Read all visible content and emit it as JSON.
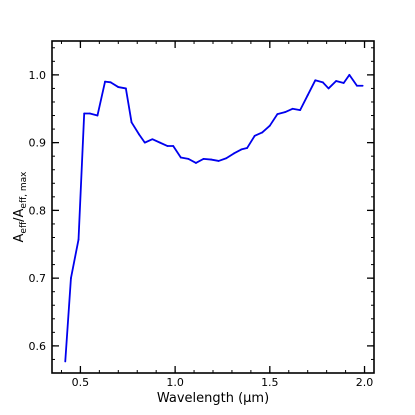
{
  "chart_data": {
    "type": "line",
    "title": "",
    "xlabel": "Wavelength (μm)",
    "ylabel": {
      "main": "A",
      "sub1": "eff",
      "sep": "/A",
      "sub2": "eff, max"
    },
    "xlim": [
      0.35,
      2.05
    ],
    "ylim": [
      0.56,
      1.05
    ],
    "xticks": [
      {
        "value": 0.5,
        "label": "0.5"
      },
      {
        "value": 1.0,
        "label": "1.0"
      },
      {
        "value": 1.5,
        "label": "1.5"
      },
      {
        "value": 2.0,
        "label": "2.0"
      }
    ],
    "yticks": [
      {
        "value": 0.6,
        "label": "0.6"
      },
      {
        "value": 0.7,
        "label": "0.7"
      },
      {
        "value": 0.8,
        "label": "0.8"
      },
      {
        "value": 0.9,
        "label": "0.9"
      },
      {
        "value": 1.0,
        "label": "1.0"
      }
    ],
    "minor_x_step": 0.1,
    "minor_y_step": 0.02,
    "grid": false,
    "line_color": "#0000ee",
    "series": [
      {
        "x": [
          0.42,
          0.45,
          0.49,
          0.52,
          0.55,
          0.59,
          0.63,
          0.66,
          0.7,
          0.74,
          0.77,
          0.81,
          0.84,
          0.88,
          0.92,
          0.96,
          0.99,
          1.03,
          1.07,
          1.11,
          1.15,
          1.19,
          1.23,
          1.27,
          1.31,
          1.35,
          1.38,
          1.42,
          1.46,
          1.5,
          1.54,
          1.58,
          1.62,
          1.66,
          1.7,
          1.74,
          1.78,
          1.81,
          1.85,
          1.89,
          1.92,
          1.96,
          1.99
        ],
        "y": [
          0.577,
          0.7,
          0.757,
          0.943,
          0.943,
          0.94,
          0.99,
          0.989,
          0.982,
          0.98,
          0.93,
          0.912,
          0.9,
          0.905,
          0.9,
          0.895,
          0.895,
          0.878,
          0.876,
          0.87,
          0.876,
          0.875,
          0.873,
          0.877,
          0.884,
          0.89,
          0.892,
          0.91,
          0.915,
          0.925,
          0.942,
          0.945,
          0.95,
          0.948,
          0.97,
          0.992,
          0.989,
          0.98,
          0.991,
          0.988,
          1.0,
          0.984,
          0.984
        ]
      }
    ]
  }
}
